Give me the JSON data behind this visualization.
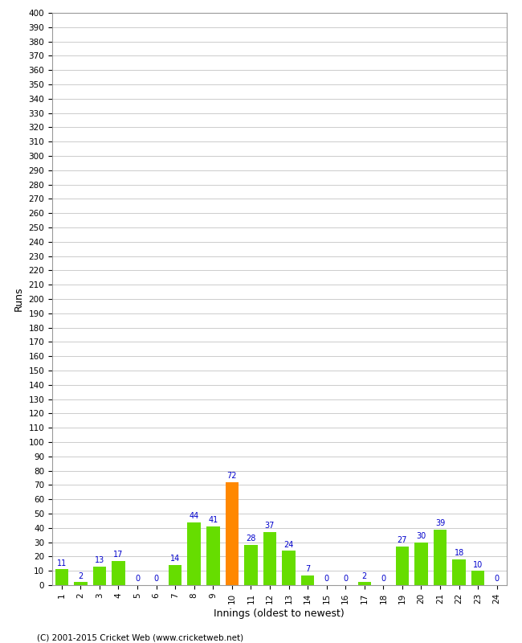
{
  "innings": [
    1,
    2,
    3,
    4,
    5,
    6,
    7,
    8,
    9,
    10,
    11,
    12,
    13,
    14,
    15,
    16,
    17,
    18,
    19,
    20,
    21,
    22,
    23,
    24
  ],
  "runs": [
    11,
    2,
    13,
    17,
    0,
    0,
    14,
    44,
    41,
    72,
    28,
    37,
    24,
    7,
    0,
    0,
    2,
    0,
    27,
    30,
    39,
    18,
    10,
    0
  ],
  "highlight_inning": 10,
  "bar_color_normal": "#66dd00",
  "bar_color_highlight": "#ff8800",
  "label_color": "#0000cc",
  "ylabel": "Runs",
  "xlabel": "Innings (oldest to newest)",
  "ytick_step": 10,
  "ymax": 400,
  "background_color": "#ffffff",
  "grid_color": "#cccccc",
  "footer": "(C) 2001-2015 Cricket Web (www.cricketweb.net)"
}
